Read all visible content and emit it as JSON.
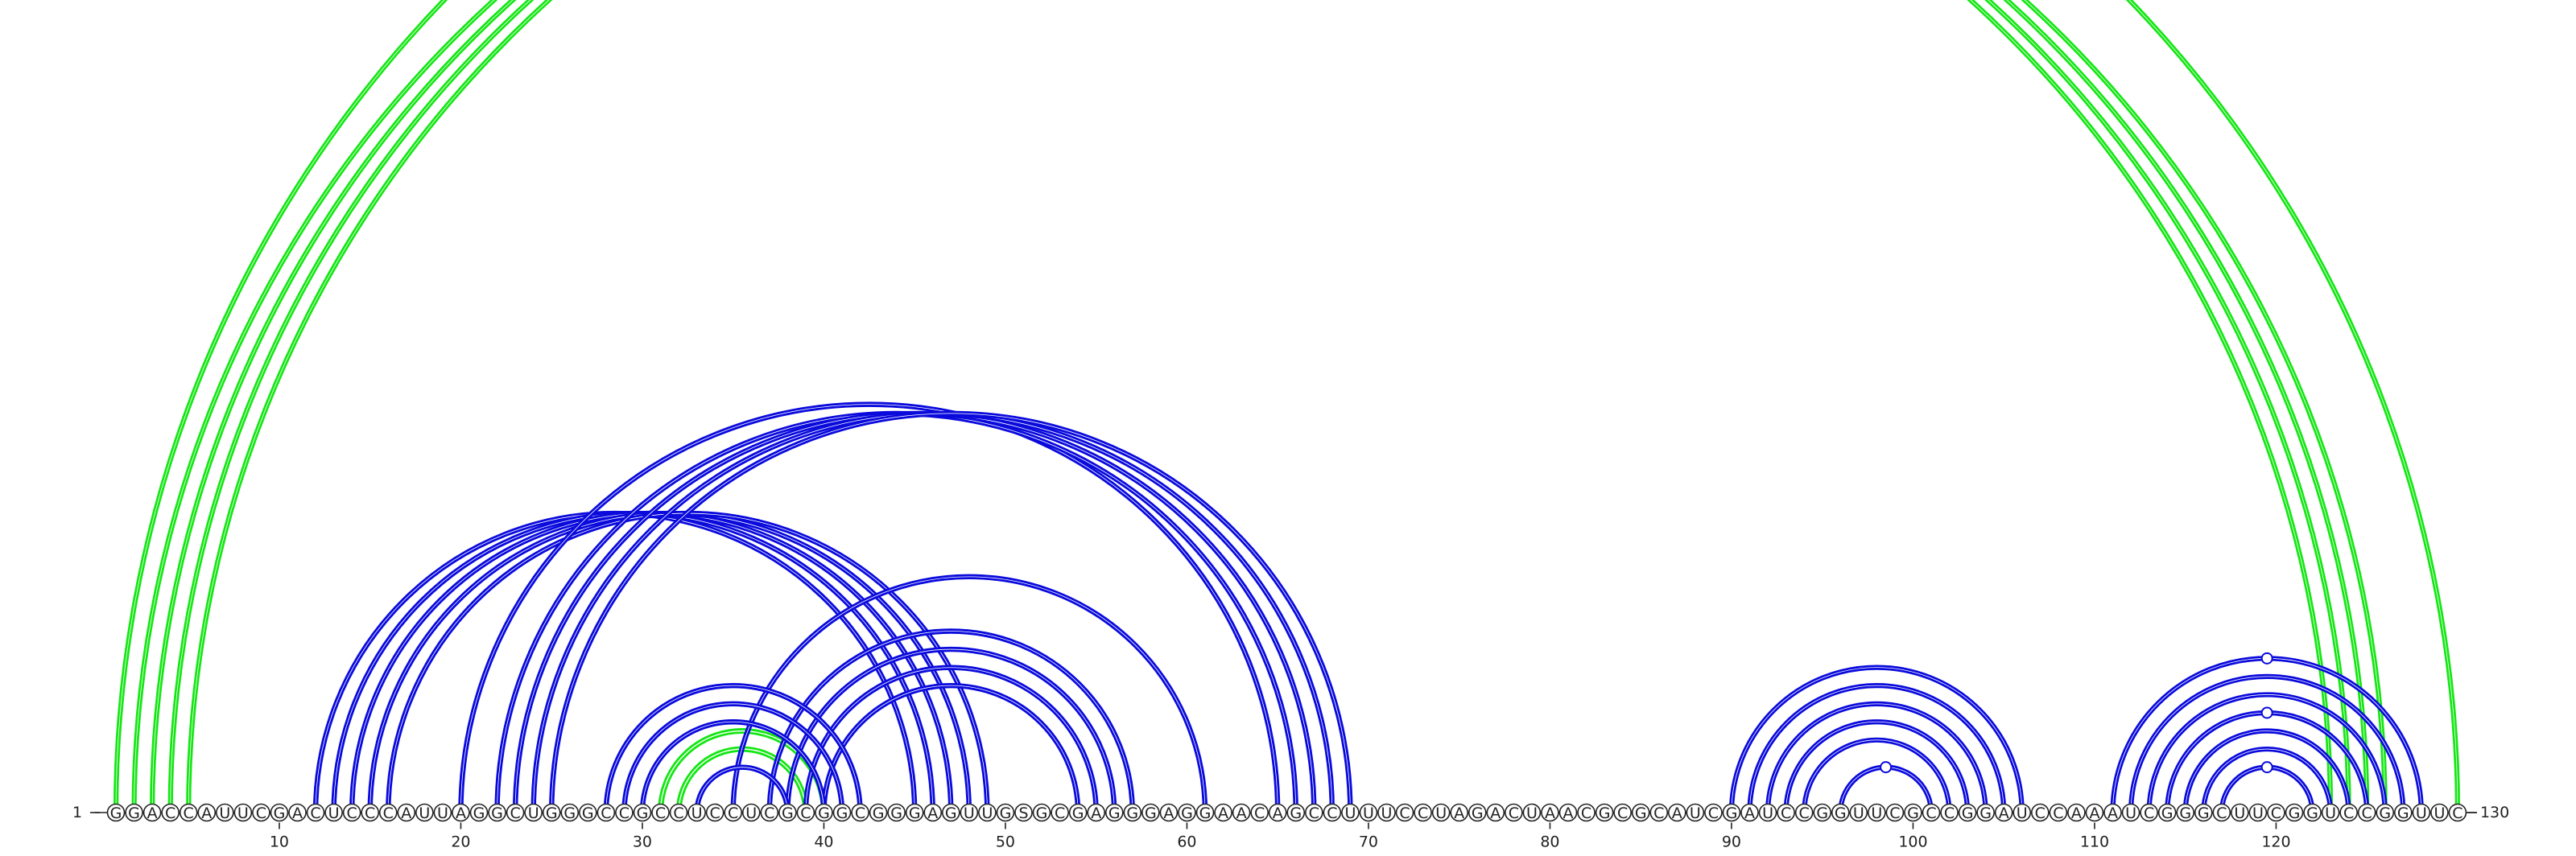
{
  "sequence": "GGACCAUUCGACUCCCAUUAGGCUGGGCCGCCUCCUCGCGGCGGGAGUUGSGCGAGGGAGGAACAGCCUUUCCUAGACUAACGCGCAUCGAUCCGGUUCGCCGGAUCCAAAUCGGGCUUCGGUCCGGUUC",
  "start_label": "1",
  "end_label": "130",
  "tick_labels": [
    "10",
    "20",
    "30",
    "40",
    "50",
    "60",
    "70",
    "80",
    "90",
    "100",
    "110",
    "120"
  ],
  "colors": {
    "blue": "#0a0adc",
    "green": "#14e614",
    "backbone": "#222222"
  },
  "arcs": [
    {
      "i": 1,
      "j": 130,
      "color": "green",
      "w": 2.2
    },
    {
      "i": 2,
      "j": 123,
      "color": "green",
      "w": 2.2
    },
    {
      "i": 3,
      "j": 124,
      "color": "green",
      "w": 2.2
    },
    {
      "i": 4,
      "j": 125,
      "color": "green",
      "w": 2.2
    },
    {
      "i": 5,
      "j": 126,
      "color": "green",
      "w": 2.2
    },
    {
      "i": 32,
      "j": 39,
      "color": "green",
      "w": 3
    },
    {
      "i": 31,
      "j": 40,
      "color": "green",
      "w": 3
    },
    {
      "i": 12,
      "j": 45,
      "color": "blue",
      "w": 2.4
    },
    {
      "i": 13,
      "j": 46,
      "color": "blue",
      "w": 2.4
    },
    {
      "i": 14,
      "j": 47,
      "color": "blue",
      "w": 2.4
    },
    {
      "i": 15,
      "j": 48,
      "color": "blue",
      "w": 2.4
    },
    {
      "i": 16,
      "j": 49,
      "color": "blue",
      "w": 2.4
    },
    {
      "i": 20,
      "j": 65,
      "color": "blue",
      "w": 2.4
    },
    {
      "i": 22,
      "j": 66,
      "color": "blue",
      "w": 2.4
    },
    {
      "i": 23,
      "j": 67,
      "color": "blue",
      "w": 2.4
    },
    {
      "i": 24,
      "j": 68,
      "color": "blue",
      "w": 2.4
    },
    {
      "i": 25,
      "j": 69,
      "color": "blue",
      "w": 2.4
    },
    {
      "i": 35,
      "j": 61,
      "color": "blue",
      "w": 2.4
    },
    {
      "i": 37,
      "j": 57,
      "color": "blue",
      "w": 2.4
    },
    {
      "i": 38,
      "j": 56,
      "color": "blue",
      "w": 2.4
    },
    {
      "i": 39,
      "j": 55,
      "color": "blue",
      "w": 2.4
    },
    {
      "i": 40,
      "j": 54,
      "color": "blue",
      "w": 2.4
    },
    {
      "i": 28,
      "j": 42,
      "color": "blue",
      "w": 2.4
    },
    {
      "i": 29,
      "j": 41,
      "color": "blue",
      "w": 2.4
    },
    {
      "i": 30,
      "j": 40,
      "color": "blue",
      "w": 2.4
    },
    {
      "i": 33,
      "j": 38,
      "color": "blue",
      "w": 2.4
    },
    {
      "i": 90,
      "j": 106,
      "color": "blue",
      "w": 2.2
    },
    {
      "i": 91,
      "j": 105,
      "color": "blue",
      "w": 2.2
    },
    {
      "i": 92,
      "j": 104,
      "color": "blue",
      "w": 2.2
    },
    {
      "i": 93,
      "j": 103,
      "color": "blue",
      "w": 2.2
    },
    {
      "i": 94,
      "j": 102,
      "color": "blue",
      "w": 2.2
    },
    {
      "i": 96,
      "j": 101,
      "color": "blue",
      "w": 2.2
    },
    {
      "i": 111,
      "j": 128,
      "color": "blue",
      "w": 2.2
    },
    {
      "i": 112,
      "j": 127,
      "color": "blue",
      "w": 2.2
    },
    {
      "i": 113,
      "j": 126,
      "color": "blue",
      "w": 2.2
    },
    {
      "i": 114,
      "j": 125,
      "color": "blue",
      "w": 2.2
    },
    {
      "i": 115,
      "j": 124,
      "color": "blue",
      "w": 2.2
    },
    {
      "i": 116,
      "j": 123,
      "color": "blue",
      "w": 2.2
    },
    {
      "i": 117,
      "j": 122,
      "color": "blue",
      "w": 2.2
    }
  ],
  "markers": [
    {
      "i": 1,
      "j": 130,
      "color": "green"
    },
    {
      "i": 96,
      "j": 101,
      "color": "blue"
    },
    {
      "i": 111,
      "j": 128,
      "color": "blue"
    },
    {
      "i": 114,
      "j": 125,
      "color": "blue"
    },
    {
      "i": 117,
      "j": 122,
      "color": "blue"
    }
  ]
}
